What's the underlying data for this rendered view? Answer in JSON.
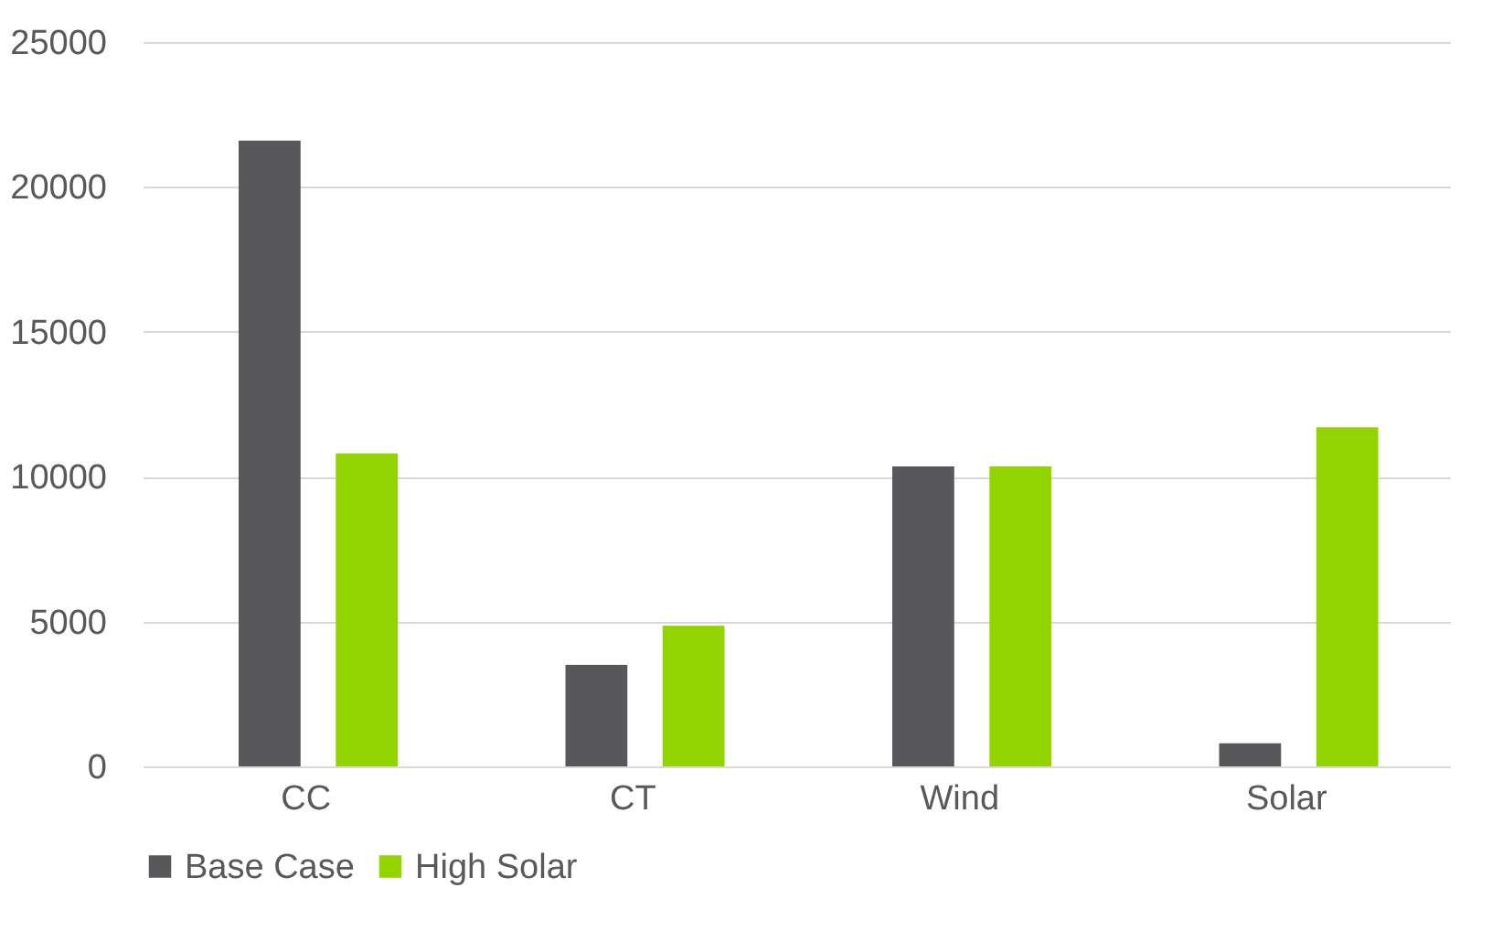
{
  "chart_data": {
    "type": "bar",
    "categories": [
      "CC",
      "CT",
      "Wind",
      "Solar"
    ],
    "series": [
      {
        "name": "Base Case",
        "color": "#58585a",
        "values": [
          21600,
          3500,
          10350,
          800
        ]
      },
      {
        "name": "High Solar",
        "color": "#92d400",
        "values": [
          10800,
          4850,
          10350,
          11700
        ]
      }
    ],
    "ylim": [
      0,
      25000
    ],
    "yticks": [
      0,
      5000,
      10000,
      15000,
      20000,
      25000
    ],
    "grid": "y",
    "legend": "bottom"
  }
}
